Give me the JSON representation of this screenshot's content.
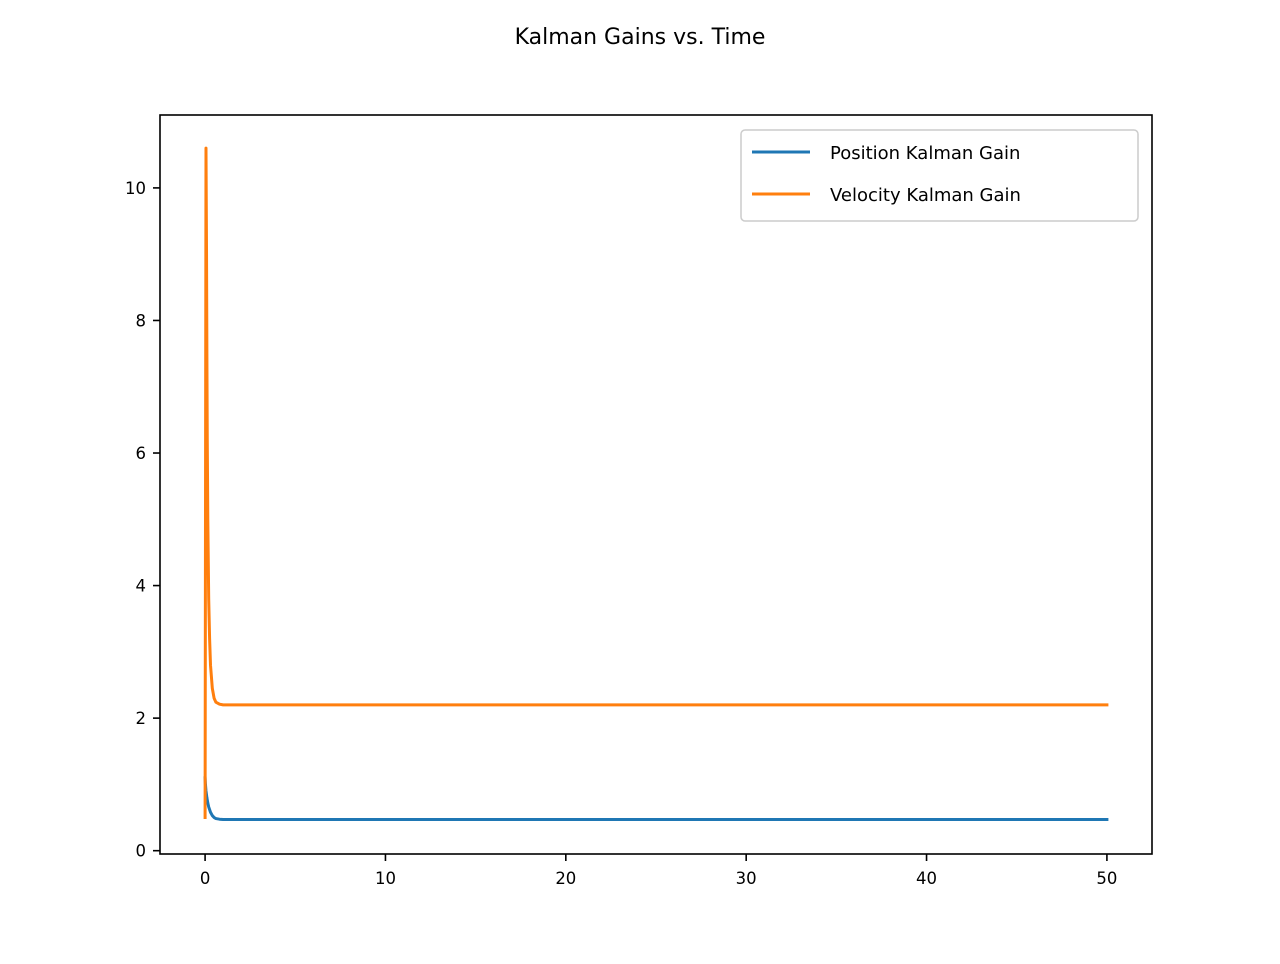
{
  "figure": {
    "title": "Kalman Gains vs. Time"
  },
  "chart_data": {
    "type": "line",
    "title": "Kalman Gains vs. Time",
    "xlabel": "",
    "ylabel": "",
    "xlim": [
      -2.5,
      52.5
    ],
    "ylim": [
      -0.05,
      11.1
    ],
    "xticks": [
      0,
      10,
      20,
      30,
      40,
      50
    ],
    "yticks": [
      0,
      2,
      4,
      6,
      8,
      10
    ],
    "grid": false,
    "legend_position": "top-right",
    "series": [
      {
        "name": "Position Kalman Gain",
        "color": "#1f77b4",
        "x": [
          0,
          0.02,
          0.05,
          0.1,
          0.15,
          0.2,
          0.3,
          0.4,
          0.5,
          0.6,
          0.8,
          1.0,
          2,
          5,
          10,
          20,
          30,
          40,
          50
        ],
        "y": [
          1.1,
          1.0,
          0.9,
          0.8,
          0.72,
          0.66,
          0.58,
          0.53,
          0.5,
          0.485,
          0.475,
          0.47,
          0.47,
          0.47,
          0.47,
          0.47,
          0.47,
          0.47,
          0.47
        ]
      },
      {
        "name": "Velocity Kalman Gain",
        "color": "#ff7f0e",
        "x": [
          0,
          0.05,
          0.08,
          0.1,
          0.12,
          0.15,
          0.2,
          0.25,
          0.3,
          0.4,
          0.5,
          0.6,
          0.8,
          1.0,
          2,
          5,
          10,
          20,
          30,
          40,
          50
        ],
        "y": [
          0.5,
          10.6,
          9.0,
          7.5,
          6.2,
          5.0,
          3.8,
          3.2,
          2.8,
          2.45,
          2.3,
          2.24,
          2.21,
          2.2,
          2.2,
          2.2,
          2.2,
          2.2,
          2.2,
          2.2,
          2.2
        ]
      }
    ]
  }
}
